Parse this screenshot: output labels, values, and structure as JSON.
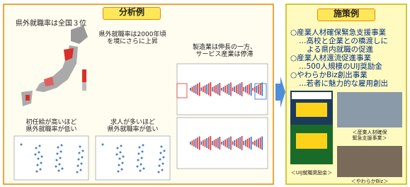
{
  "left_panel": {
    "title": "分析例",
    "captions": [
      "県外就職率は全国３位",
      "県外就職率は2000年頃\nを境にさらに上昇",
      "製造業は伸長の一方、\nサービス産業は停滞",
      "初任給が高いほど\n県外就職率が低い",
      "求人が多いほど\n県外就職率が低い"
    ]
  },
  "right_panel": {
    "title": "施策例",
    "items": [
      "○産業人材確保緊急支援事業",
      "…高校と企業との橋渡しに",
      "よる県内就職の促進",
      "○産業人材還流促進事業",
      "…500人規模のUIJ奨励金",
      "○やわらかBiz創出事業",
      "…若者に魅力的な雇用創出"
    ],
    "photo_captions": [
      "＜産業人材確保\n緊急支援事業＞",
      "＜UIJ就職奨励金＞",
      "＜やわらかBiz＞"
    ]
  }
}
